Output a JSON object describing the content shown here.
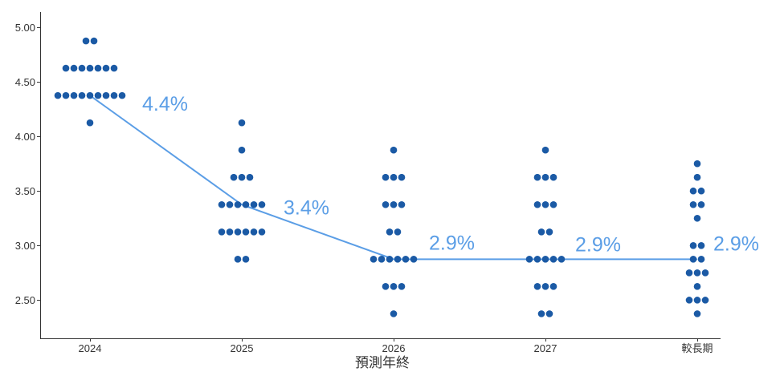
{
  "chart_data": {
    "type": "scatter",
    "categories": [
      "2024",
      "2025",
      "2026",
      "2027",
      "較長期"
    ],
    "xlabel": "預測年終",
    "ylim": [
      2.15,
      5.14
    ],
    "yticks": [
      2.5,
      3.0,
      3.5,
      4.0,
      4.5,
      5.0
    ],
    "ytick_labels": [
      "2.50",
      "3.00",
      "3.50",
      "4.00",
      "4.50",
      "5.00"
    ],
    "grid": false,
    "dots": [
      [
        {
          "y": 4.875,
          "count": 2
        },
        {
          "y": 4.625,
          "count": 7
        },
        {
          "y": 4.375,
          "count": 9
        },
        {
          "y": 4.125,
          "count": 1
        }
      ],
      [
        {
          "y": 4.125,
          "count": 1
        },
        {
          "y": 3.875,
          "count": 1
        },
        {
          "y": 3.625,
          "count": 3
        },
        {
          "y": 3.375,
          "count": 6
        },
        {
          "y": 3.125,
          "count": 6
        },
        {
          "y": 2.875,
          "count": 2
        }
      ],
      [
        {
          "y": 3.875,
          "count": 1
        },
        {
          "y": 3.625,
          "count": 3
        },
        {
          "y": 3.375,
          "count": 3
        },
        {
          "y": 3.125,
          "count": 2
        },
        {
          "y": 2.875,
          "count": 6
        },
        {
          "y": 2.625,
          "count": 3
        },
        {
          "y": 2.375,
          "count": 1
        }
      ],
      [
        {
          "y": 3.875,
          "count": 1
        },
        {
          "y": 3.625,
          "count": 3
        },
        {
          "y": 3.375,
          "count": 3
        },
        {
          "y": 3.125,
          "count": 2
        },
        {
          "y": 2.875,
          "count": 5
        },
        {
          "y": 2.625,
          "count": 3
        },
        {
          "y": 2.375,
          "count": 2
        }
      ],
      [
        {
          "y": 3.75,
          "count": 1
        },
        {
          "y": 3.625,
          "count": 1
        },
        {
          "y": 3.5,
          "count": 2
        },
        {
          "y": 3.375,
          "count": 2
        },
        {
          "y": 3.25,
          "count": 1
        },
        {
          "y": 3.0,
          "count": 2
        },
        {
          "y": 2.875,
          "count": 2
        },
        {
          "y": 2.75,
          "count": 3
        },
        {
          "y": 2.625,
          "count": 1
        },
        {
          "y": 2.5,
          "count": 3
        },
        {
          "y": 2.375,
          "count": 1
        }
      ]
    ],
    "median": {
      "values": [
        4.375,
        3.375,
        2.875,
        2.875,
        2.875
      ],
      "labels": [
        "4.4%",
        "3.4%",
        "2.9%",
        "2.9%",
        "2.9%"
      ]
    },
    "colors": {
      "dots": "#1b5aa5",
      "median_line": "#5b9ee6",
      "median_labels": "#5b9ee6",
      "axis": "#333333"
    }
  }
}
